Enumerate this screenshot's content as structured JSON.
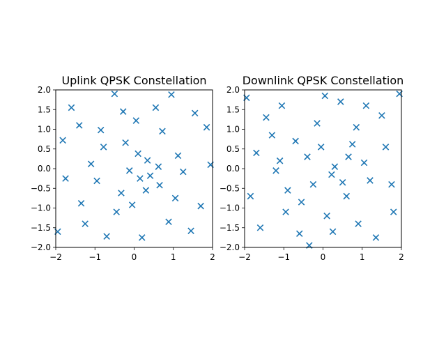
{
  "chart_data": [
    {
      "type": "scatter",
      "title": "Uplink QPSK Constellation",
      "xlabel": "",
      "ylabel": "",
      "xlim": [
        -2,
        2
      ],
      "ylim": [
        -2,
        2
      ],
      "xticks": [
        "−2",
        "−1",
        "0",
        "1",
        "2"
      ],
      "yticks": [
        "−2.0",
        "−1.5",
        "−1.0",
        "−0.5",
        "0.0",
        "0.5",
        "1.0",
        "1.5",
        "2.0"
      ],
      "xtick_values": [
        -2,
        -1,
        0,
        1,
        2
      ],
      "ytick_values": [
        -2.0,
        -1.5,
        -1.0,
        -0.5,
        0.0,
        0.5,
        1.0,
        1.5,
        2.0
      ],
      "marker": "x",
      "color": "#1f77b4",
      "grid": false,
      "points": [
        [
          -0.12,
          -0.05
        ],
        [
          0.34,
          0.21
        ],
        [
          0.65,
          -0.42
        ],
        [
          -0.78,
          0.55
        ],
        [
          1.12,
          0.33
        ],
        [
          -1.35,
          -0.88
        ],
        [
          0.05,
          1.22
        ],
        [
          -0.45,
          -1.1
        ],
        [
          1.55,
          1.41
        ],
        [
          -1.82,
          0.72
        ],
        [
          0.88,
          -1.35
        ],
        [
          -0.22,
          0.66
        ],
        [
          0.41,
          -0.18
        ],
        [
          -0.95,
          -0.31
        ],
        [
          1.7,
          -0.95
        ],
        [
          -1.6,
          1.55
        ],
        [
          0.2,
          -1.75
        ],
        [
          -0.5,
          1.9
        ],
        [
          1.95,
          0.1
        ],
        [
          -1.95,
          -1.6
        ],
        [
          0.72,
          0.95
        ],
        [
          -0.33,
          -0.62
        ],
        [
          1.25,
          -0.08
        ],
        [
          -1.1,
          0.12
        ],
        [
          0.1,
          0.38
        ],
        [
          0.55,
          1.55
        ],
        [
          -0.7,
          -1.72
        ],
        [
          1.45,
          -1.58
        ],
        [
          -1.4,
          1.1
        ],
        [
          0.95,
          1.88
        ],
        [
          -0.05,
          -0.92
        ],
        [
          0.3,
          -0.55
        ],
        [
          -1.75,
          -0.25
        ],
        [
          1.85,
          1.05
        ],
        [
          -0.85,
          0.98
        ],
        [
          0.62,
          0.05
        ],
        [
          -0.28,
          1.45
        ],
        [
          1.05,
          -0.75
        ],
        [
          -1.25,
          -1.4
        ],
        [
          0.15,
          -0.25
        ]
      ]
    },
    {
      "type": "scatter",
      "title": "Downlink QPSK Constellation",
      "xlabel": "",
      "ylabel": "",
      "xlim": [
        -2,
        2
      ],
      "ylim": [
        -2,
        2
      ],
      "xticks": [
        "−2",
        "−1",
        "0",
        "1",
        "2"
      ],
      "yticks": [
        "−2.0",
        "−1.5",
        "−1.0",
        "−0.5",
        "0.0",
        "0.5",
        "1.0",
        "1.5",
        "2.0"
      ],
      "xtick_values": [
        -2,
        -1,
        0,
        1,
        2
      ],
      "ytick_values": [
        -2.0,
        -1.5,
        -1.0,
        -0.5,
        0.0,
        0.5,
        1.0,
        1.5,
        2.0
      ],
      "marker": "x",
      "color": "#1f77b4",
      "grid": false,
      "points": [
        [
          0.22,
          -0.15
        ],
        [
          -0.4,
          0.3
        ],
        [
          0.75,
          0.62
        ],
        [
          -0.9,
          -0.55
        ],
        [
          1.2,
          -0.3
        ],
        [
          -1.3,
          0.85
        ],
        [
          0.1,
          -1.2
        ],
        [
          -0.15,
          1.15
        ],
        [
          1.5,
          1.35
        ],
        [
          -1.85,
          -0.7
        ],
        [
          0.9,
          -1.4
        ],
        [
          -0.6,
          -1.65
        ],
        [
          0.45,
          1.7
        ],
        [
          -1.05,
          1.6
        ],
        [
          1.8,
          -1.1
        ],
        [
          -1.6,
          -1.5
        ],
        [
          0.3,
          0.05
        ],
        [
          -0.25,
          -0.4
        ],
        [
          1.05,
          0.15
        ],
        [
          -1.2,
          -0.05
        ],
        [
          0.6,
          -0.7
        ],
        [
          -0.7,
          0.7
        ],
        [
          1.6,
          0.55
        ],
        [
          -1.7,
          0.4
        ],
        [
          0.05,
          1.85
        ],
        [
          -0.35,
          -1.95
        ],
        [
          1.95,
          1.9
        ],
        [
          -1.95,
          1.8
        ],
        [
          0.85,
          1.05
        ],
        [
          -0.95,
          -1.1
        ],
        [
          1.35,
          -1.75
        ],
        [
          -1.45,
          1.3
        ],
        [
          0.5,
          -0.35
        ],
        [
          -0.05,
          0.55
        ],
        [
          1.75,
          -0.4
        ],
        [
          -0.55,
          -0.85
        ],
        [
          0.25,
          -1.6
        ],
        [
          -1.1,
          0.2
        ],
        [
          1.1,
          1.6
        ],
        [
          0.65,
          0.3
        ]
      ]
    }
  ]
}
